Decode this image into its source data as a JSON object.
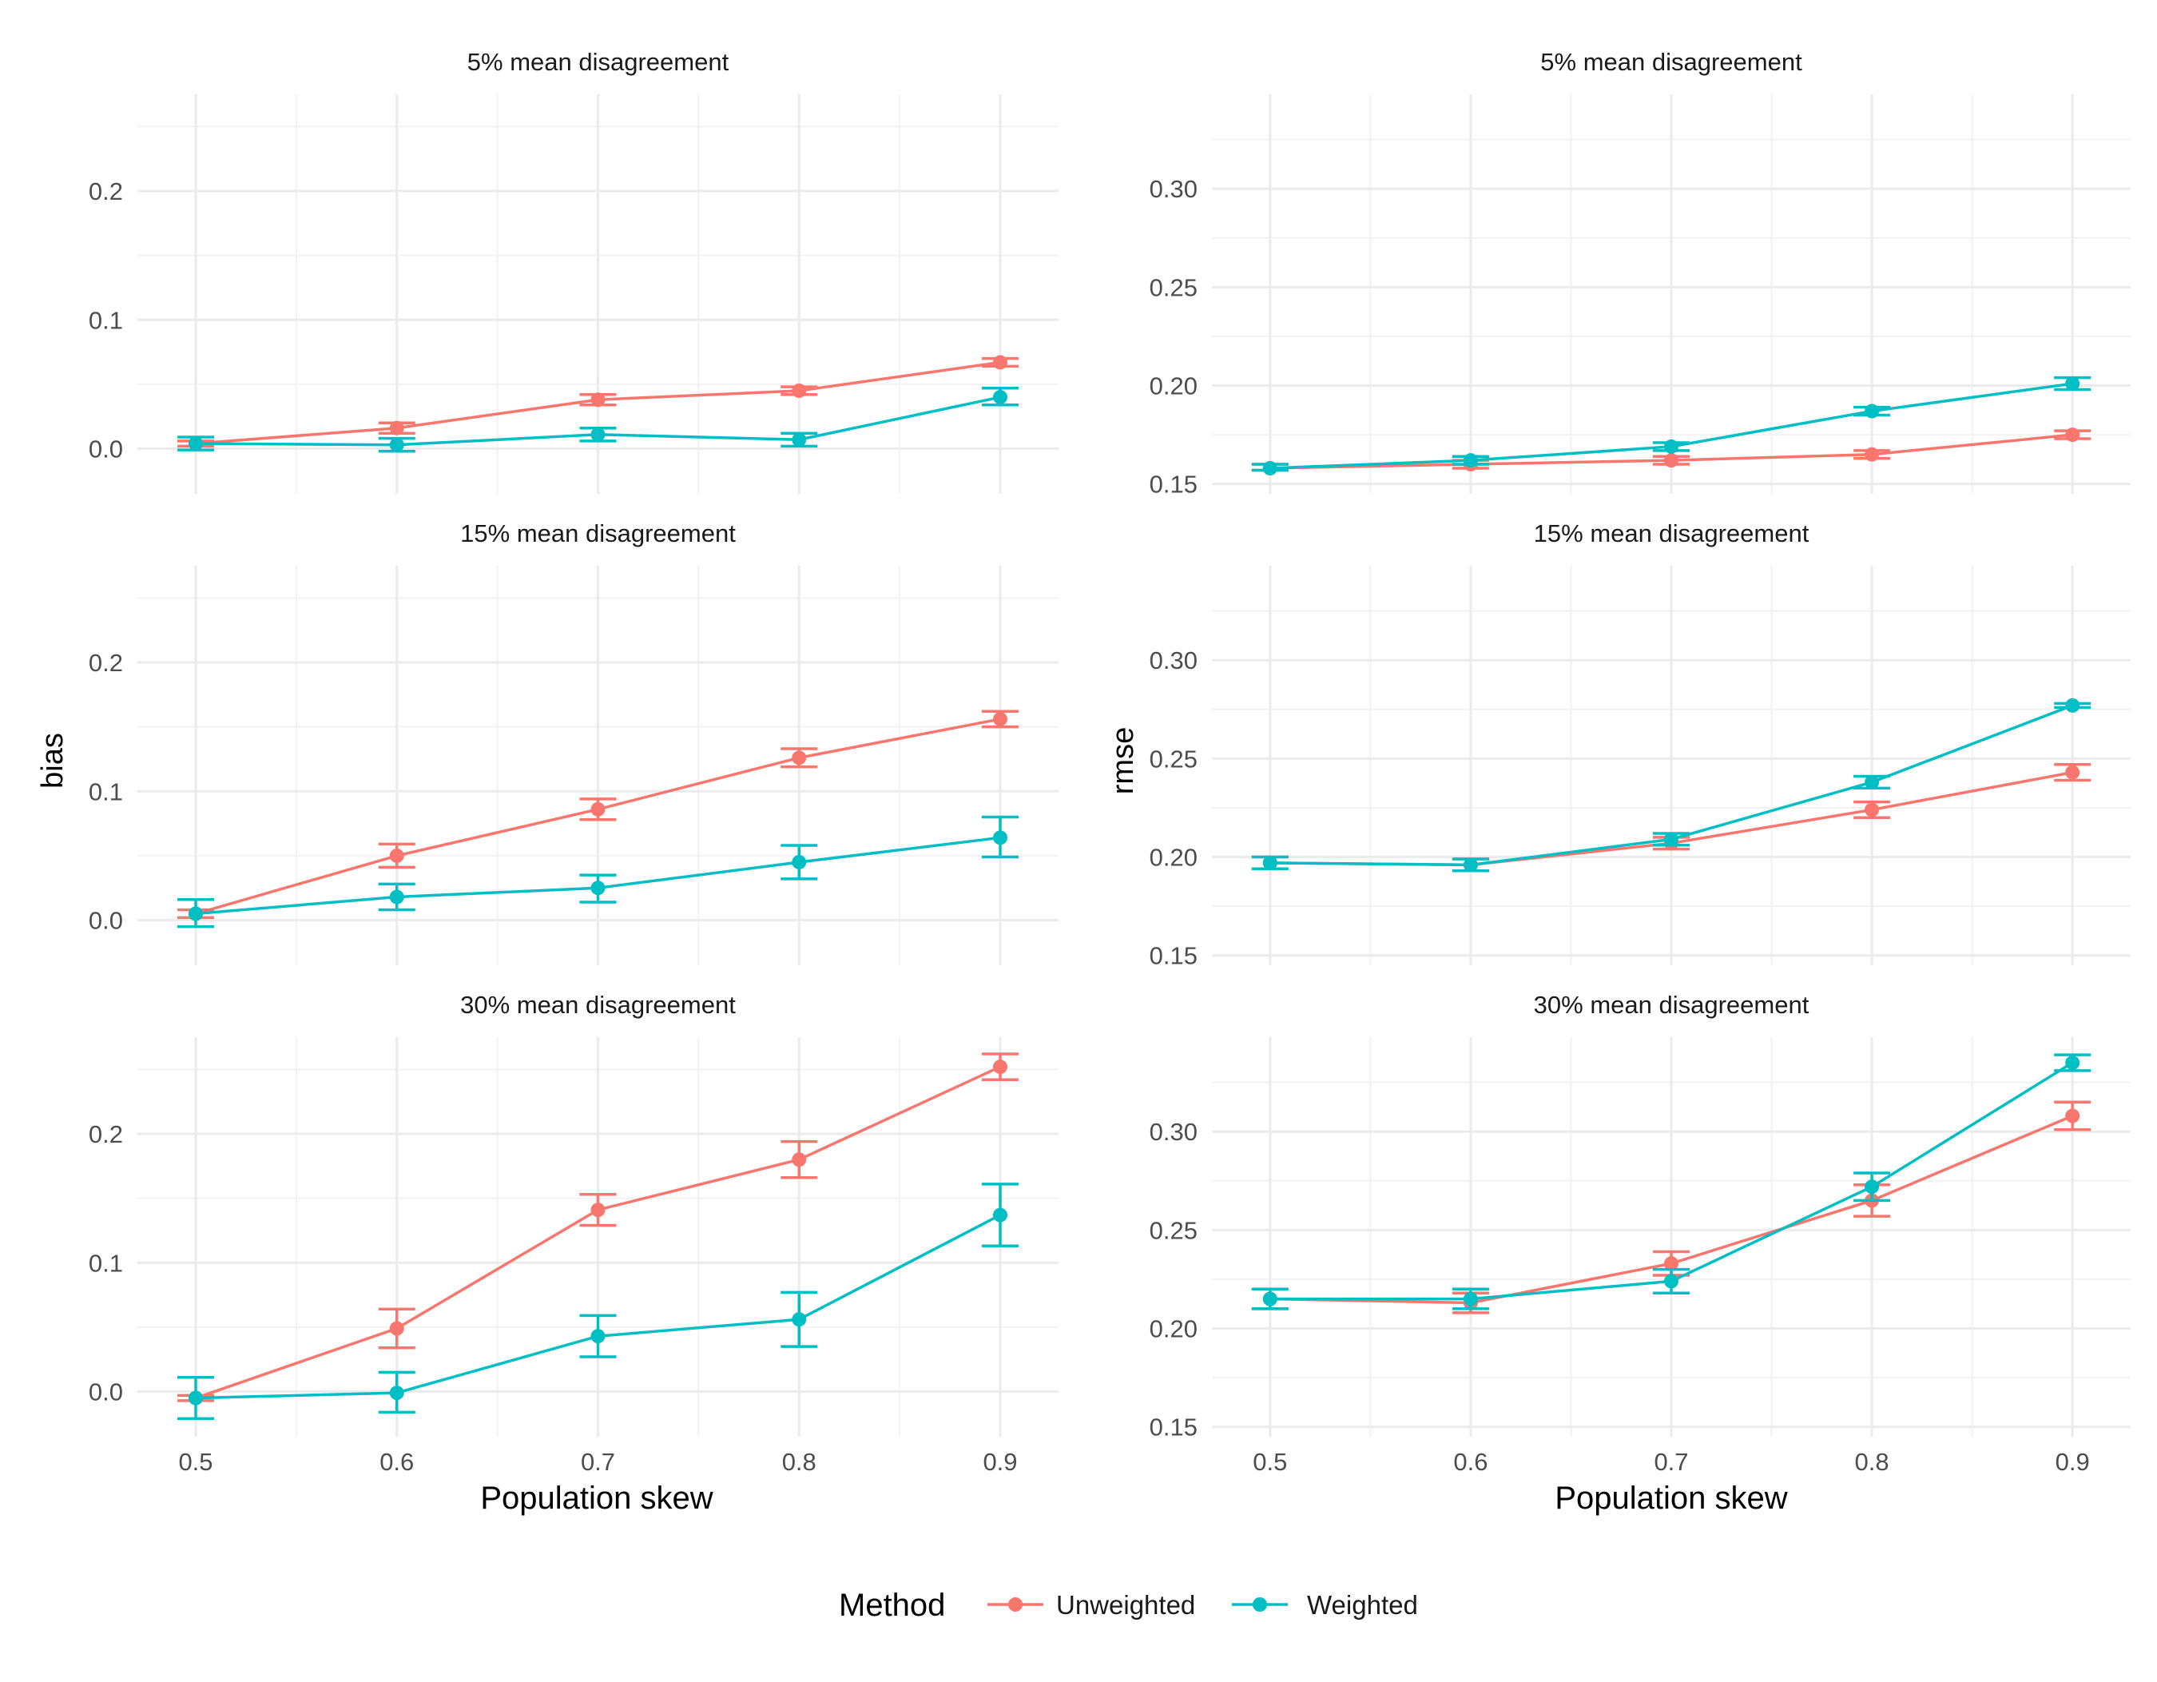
{
  "legend": {
    "title": "Method",
    "entries": [
      {
        "name": "Unweighted",
        "color": "#F8766D"
      },
      {
        "name": "Weighted",
        "color": "#00BFC4"
      }
    ]
  },
  "chart_data": [
    {
      "type": "line",
      "title": "5% mean disagreement",
      "xlabel": "",
      "ylabel": "",
      "x": [
        0.5,
        0.6,
        0.7,
        0.8,
        0.9
      ],
      "xticks": [
        "0.5",
        "0.6",
        "0.7",
        "0.8",
        "0.9"
      ],
      "ylim": [
        -0.035,
        0.275
      ],
      "yticks": [
        "0.0",
        "0.1",
        "0.2"
      ],
      "grid": true,
      "series": [
        {
          "name": "Unweighted",
          "color": "#F8766D",
          "values": [
            0.004,
            0.016,
            0.038,
            0.045,
            0.067
          ],
          "lower": [
            0.002,
            0.012,
            0.034,
            0.042,
            0.064
          ],
          "upper": [
            0.006,
            0.02,
            0.042,
            0.048,
            0.07
          ]
        },
        {
          "name": "Weighted",
          "color": "#00BFC4",
          "values": [
            0.004,
            0.003,
            0.011,
            0.007,
            0.04
          ],
          "lower": [
            -0.001,
            -0.002,
            0.006,
            0.002,
            0.034
          ],
          "upper": [
            0.009,
            0.008,
            0.016,
            0.012,
            0.047
          ]
        }
      ]
    },
    {
      "type": "line",
      "title": "5% mean disagreement",
      "xlabel": "",
      "ylabel": "",
      "x": [
        0.5,
        0.6,
        0.7,
        0.8,
        0.9
      ],
      "xticks": [
        "0.5",
        "0.6",
        "0.7",
        "0.8",
        "0.9"
      ],
      "ylim": [
        0.145,
        0.348
      ],
      "yticks": [
        "0.15",
        "0.20",
        "0.25",
        "0.30"
      ],
      "grid": true,
      "series": [
        {
          "name": "Unweighted",
          "color": "#F8766D",
          "values": [
            0.158,
            0.16,
            0.162,
            0.165,
            0.175
          ],
          "lower": [
            0.157,
            0.158,
            0.16,
            0.163,
            0.173
          ],
          "upper": [
            0.16,
            0.162,
            0.164,
            0.167,
            0.177
          ]
        },
        {
          "name": "Weighted",
          "color": "#00BFC4",
          "values": [
            0.158,
            0.162,
            0.169,
            0.187,
            0.201
          ],
          "lower": [
            0.157,
            0.16,
            0.167,
            0.185,
            0.198
          ],
          "upper": [
            0.16,
            0.164,
            0.171,
            0.189,
            0.204
          ]
        }
      ]
    },
    {
      "type": "line",
      "title": "15% mean disagreement",
      "xlabel": "",
      "ylabel": "bias",
      "x": [
        0.5,
        0.6,
        0.7,
        0.8,
        0.9
      ],
      "xticks": [
        "0.5",
        "0.6",
        "0.7",
        "0.8",
        "0.9"
      ],
      "ylim": [
        -0.035,
        0.275
      ],
      "yticks": [
        "0.0",
        "0.1",
        "0.2"
      ],
      "grid": true,
      "series": [
        {
          "name": "Unweighted",
          "color": "#F8766D",
          "values": [
            0.005,
            0.05,
            0.086,
            0.126,
            0.156
          ],
          "lower": [
            0.002,
            0.041,
            0.078,
            0.119,
            0.15
          ],
          "upper": [
            0.008,
            0.059,
            0.094,
            0.133,
            0.162
          ]
        },
        {
          "name": "Weighted",
          "color": "#00BFC4",
          "values": [
            0.005,
            0.018,
            0.025,
            0.045,
            0.064
          ],
          "lower": [
            -0.005,
            0.008,
            0.014,
            0.032,
            0.049
          ],
          "upper": [
            0.016,
            0.028,
            0.035,
            0.058,
            0.08
          ]
        }
      ]
    },
    {
      "type": "line",
      "title": "15% mean disagreement",
      "xlabel": "",
      "ylabel": "rmse",
      "x": [
        0.5,
        0.6,
        0.7,
        0.8,
        0.9
      ],
      "xticks": [
        "0.5",
        "0.6",
        "0.7",
        "0.8",
        "0.9"
      ],
      "ylim": [
        0.145,
        0.348
      ],
      "yticks": [
        "0.15",
        "0.20",
        "0.25",
        "0.30"
      ],
      "grid": true,
      "series": [
        {
          "name": "Unweighted",
          "color": "#F8766D",
          "values": [
            0.197,
            0.196,
            0.207,
            0.224,
            0.243
          ],
          "lower": [
            0.194,
            0.193,
            0.204,
            0.22,
            0.239
          ],
          "upper": [
            0.2,
            0.199,
            0.21,
            0.228,
            0.247
          ]
        },
        {
          "name": "Weighted",
          "color": "#00BFC4",
          "values": [
            0.197,
            0.196,
            0.209,
            0.238,
            0.277
          ],
          "lower": [
            0.194,
            0.193,
            0.206,
            0.235,
            0.276
          ],
          "upper": [
            0.2,
            0.199,
            0.212,
            0.241,
            0.278
          ]
        }
      ]
    },
    {
      "type": "line",
      "title": "30% mean disagreement",
      "xlabel": "Population skew",
      "ylabel": "",
      "x": [
        0.5,
        0.6,
        0.7,
        0.8,
        0.9
      ],
      "xticks": [
        "0.5",
        "0.6",
        "0.7",
        "0.8",
        "0.9"
      ],
      "ylim": [
        -0.035,
        0.275
      ],
      "yticks": [
        "0.0",
        "0.1",
        "0.2"
      ],
      "grid": true,
      "series": [
        {
          "name": "Unweighted",
          "color": "#F8766D",
          "values": [
            -0.005,
            0.049,
            0.141,
            0.18,
            0.252
          ],
          "lower": [
            -0.007,
            0.034,
            0.129,
            0.166,
            0.242
          ],
          "upper": [
            -0.003,
            0.064,
            0.153,
            0.194,
            0.262
          ]
        },
        {
          "name": "Weighted",
          "color": "#00BFC4",
          "values": [
            -0.005,
            -0.001,
            0.043,
            0.056,
            0.137
          ],
          "lower": [
            -0.021,
            -0.016,
            0.027,
            0.035,
            0.113
          ],
          "upper": [
            0.011,
            0.015,
            0.059,
            0.077,
            0.161
          ]
        }
      ]
    },
    {
      "type": "line",
      "title": "30% mean disagreement",
      "xlabel": "Population skew",
      "ylabel": "",
      "x": [
        0.5,
        0.6,
        0.7,
        0.8,
        0.9
      ],
      "xticks": [
        "0.5",
        "0.6",
        "0.7",
        "0.8",
        "0.9"
      ],
      "ylim": [
        0.145,
        0.348
      ],
      "yticks": [
        "0.15",
        "0.20",
        "0.25",
        "0.30"
      ],
      "grid": true,
      "series": [
        {
          "name": "Unweighted",
          "color": "#F8766D",
          "values": [
            0.215,
            0.213,
            0.233,
            0.265,
            0.308
          ],
          "lower": [
            0.21,
            0.208,
            0.227,
            0.257,
            0.301
          ],
          "upper": [
            0.22,
            0.218,
            0.239,
            0.273,
            0.315
          ]
        },
        {
          "name": "Weighted",
          "color": "#00BFC4",
          "values": [
            0.215,
            0.215,
            0.224,
            0.272,
            0.335
          ],
          "lower": [
            0.21,
            0.21,
            0.218,
            0.265,
            0.331
          ],
          "upper": [
            0.22,
            0.22,
            0.23,
            0.279,
            0.339
          ]
        }
      ]
    }
  ]
}
